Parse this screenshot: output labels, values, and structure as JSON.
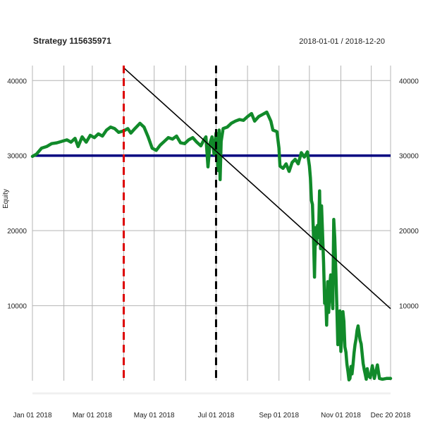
{
  "chart_data": {
    "type": "line",
    "title": "Strategy 115635971",
    "date_range": "2018-01-01 / 2018-12-20",
    "ylabel": "Equity",
    "xlim": [
      "2018-01-01",
      "2018-12-20"
    ],
    "ylim": [
      0,
      42000
    ],
    "x_ticks": [
      {
        "date": "2018-01-01",
        "label": "Jan 01 2018"
      },
      {
        "date": "2018-03-01",
        "label": "Mar 01 2018"
      },
      {
        "date": "2018-05-01",
        "label": "May 01 2018"
      },
      {
        "date": "2018-07-01",
        "label": "Jul 01 2018"
      },
      {
        "date": "2018-09-01",
        "label": "Sep 01 2018"
      },
      {
        "date": "2018-11-01",
        "label": "Nov 01 2018"
      },
      {
        "date": "2018-12-20",
        "label": "Dec 20 2018"
      }
    ],
    "x_gridlines": [
      "2018-01-01",
      "2018-02-01",
      "2018-03-01",
      "2018-04-01",
      "2018-05-01",
      "2018-06-01",
      "2018-07-01",
      "2018-08-01",
      "2018-09-01",
      "2018-10-01",
      "2018-11-01",
      "2018-12-01",
      "2018-12-20"
    ],
    "y_ticks": [
      10000,
      20000,
      30000,
      40000
    ],
    "y_tick_labels": [
      "10000",
      "20000",
      "30000",
      "40000"
    ],
    "grid": true,
    "baseline": {
      "value": 30000,
      "color": "#000080"
    },
    "trend_line": {
      "start": {
        "date": "2018-04-01",
        "value": 41700
      },
      "end": {
        "date": "2018-12-20",
        "value": 9600
      },
      "color": "#000000"
    },
    "vertical_markers": [
      {
        "date": "2018-04-01",
        "color": "#dd0000",
        "style": "dashed"
      },
      {
        "date": "2018-07-01",
        "color": "#000000",
        "style": "dashed"
      }
    ],
    "series": [
      {
        "color": "#118a2a",
        "points": [
          [
            "2018-01-01",
            29900
          ],
          [
            "2018-01-05",
            30200
          ],
          [
            "2018-01-10",
            31000
          ],
          [
            "2018-01-15",
            31200
          ],
          [
            "2018-01-20",
            31600
          ],
          [
            "2018-01-25",
            31700
          ],
          [
            "2018-01-30",
            31900
          ],
          [
            "2018-02-04",
            32100
          ],
          [
            "2018-02-08",
            31800
          ],
          [
            "2018-02-12",
            32300
          ],
          [
            "2018-02-15",
            31200
          ],
          [
            "2018-02-19",
            32500
          ],
          [
            "2018-02-23",
            31800
          ],
          [
            "2018-02-27",
            32700
          ],
          [
            "2018-03-03",
            32400
          ],
          [
            "2018-03-07",
            32900
          ],
          [
            "2018-03-11",
            32600
          ],
          [
            "2018-03-15",
            33400
          ],
          [
            "2018-03-19",
            33800
          ],
          [
            "2018-03-23",
            33600
          ],
          [
            "2018-03-27",
            33100
          ],
          [
            "2018-04-01",
            33300
          ],
          [
            "2018-04-05",
            33600
          ],
          [
            "2018-04-08",
            33000
          ],
          [
            "2018-04-12",
            33600
          ],
          [
            "2018-04-17",
            34300
          ],
          [
            "2018-04-21",
            33800
          ],
          [
            "2018-04-25",
            32500
          ],
          [
            "2018-04-29",
            31000
          ],
          [
            "2018-05-03",
            30700
          ],
          [
            "2018-05-07",
            31400
          ],
          [
            "2018-05-11",
            31900
          ],
          [
            "2018-05-15",
            32400
          ],
          [
            "2018-05-19",
            32200
          ],
          [
            "2018-05-23",
            32600
          ],
          [
            "2018-05-27",
            31700
          ],
          [
            "2018-05-31",
            31600
          ],
          [
            "2018-06-04",
            32100
          ],
          [
            "2018-06-08",
            32400
          ],
          [
            "2018-06-12",
            31800
          ],
          [
            "2018-06-16",
            31300
          ],
          [
            "2018-06-19",
            32100
          ],
          [
            "2018-06-21",
            32500
          ],
          [
            "2018-06-23",
            28500
          ],
          [
            "2018-06-25",
            31600
          ],
          [
            "2018-06-27",
            32500
          ],
          [
            "2018-06-29",
            30200
          ],
          [
            "2018-07-01",
            33000
          ],
          [
            "2018-07-03",
            28000
          ],
          [
            "2018-07-04",
            33400
          ],
          [
            "2018-07-05",
            26800
          ],
          [
            "2018-07-06",
            31900
          ],
          [
            "2018-07-08",
            33600
          ],
          [
            "2018-07-12",
            33800
          ],
          [
            "2018-07-16",
            34300
          ],
          [
            "2018-07-20",
            34600
          ],
          [
            "2018-07-24",
            34800
          ],
          [
            "2018-07-28",
            34700
          ],
          [
            "2018-08-01",
            35200
          ],
          [
            "2018-08-05",
            35600
          ],
          [
            "2018-08-08",
            34600
          ],
          [
            "2018-08-12",
            35200
          ],
          [
            "2018-08-16",
            35500
          ],
          [
            "2018-08-20",
            35800
          ],
          [
            "2018-08-24",
            34600
          ],
          [
            "2018-08-26",
            33400
          ],
          [
            "2018-08-30",
            33200
          ],
          [
            "2018-09-01",
            31000
          ],
          [
            "2018-09-02",
            28600
          ],
          [
            "2018-09-05",
            28300
          ],
          [
            "2018-09-08",
            28900
          ],
          [
            "2018-09-11",
            27900
          ],
          [
            "2018-09-14",
            29100
          ],
          [
            "2018-09-17",
            29500
          ],
          [
            "2018-09-20",
            28900
          ],
          [
            "2018-09-23",
            30400
          ],
          [
            "2018-09-26",
            29800
          ],
          [
            "2018-09-29",
            30500
          ],
          [
            "2018-10-01",
            28600
          ],
          [
            "2018-10-02",
            27000
          ],
          [
            "2018-10-03",
            24000
          ],
          [
            "2018-10-04",
            23500
          ],
          [
            "2018-10-05",
            19500
          ],
          [
            "2018-10-06",
            13800
          ],
          [
            "2018-10-07",
            20400
          ],
          [
            "2018-10-08",
            18200
          ],
          [
            "2018-10-09",
            20700
          ],
          [
            "2018-10-10",
            19100
          ],
          [
            "2018-10-11",
            25300
          ],
          [
            "2018-10-12",
            17600
          ],
          [
            "2018-10-13",
            23300
          ],
          [
            "2018-10-14",
            19400
          ],
          [
            "2018-10-15",
            15700
          ],
          [
            "2018-10-16",
            10300
          ],
          [
            "2018-10-17",
            11600
          ],
          [
            "2018-10-18",
            7400
          ],
          [
            "2018-10-19",
            13200
          ],
          [
            "2018-10-20",
            9100
          ],
          [
            "2018-10-21",
            12700
          ],
          [
            "2018-10-22",
            14100
          ],
          [
            "2018-10-23",
            11500
          ],
          [
            "2018-10-24",
            9600
          ],
          [
            "2018-10-25",
            21500
          ],
          [
            "2018-10-26",
            19100
          ],
          [
            "2018-10-27",
            14800
          ],
          [
            "2018-10-28",
            10200
          ],
          [
            "2018-10-29",
            4800
          ],
          [
            "2018-10-30",
            7100
          ],
          [
            "2018-10-31",
            9300
          ],
          [
            "2018-11-01",
            3900
          ],
          [
            "2018-11-02",
            6500
          ],
          [
            "2018-11-03",
            9200
          ],
          [
            "2018-11-04",
            7900
          ],
          [
            "2018-11-05",
            4500
          ],
          [
            "2018-11-06",
            3800
          ],
          [
            "2018-11-07",
            2200
          ],
          [
            "2018-11-08",
            1200
          ],
          [
            "2018-11-09",
            100
          ],
          [
            "2018-11-10",
            300
          ],
          [
            "2018-11-11",
            1900
          ],
          [
            "2018-11-12",
            900
          ],
          [
            "2018-11-13",
            2200
          ],
          [
            "2018-11-14",
            3700
          ],
          [
            "2018-11-15",
            4800
          ],
          [
            "2018-11-16",
            5600
          ],
          [
            "2018-11-17",
            6700
          ],
          [
            "2018-11-18",
            7300
          ],
          [
            "2018-11-19",
            6300
          ],
          [
            "2018-11-20",
            5400
          ],
          [
            "2018-11-21",
            4900
          ],
          [
            "2018-11-22",
            3600
          ],
          [
            "2018-11-23",
            2300
          ],
          [
            "2018-11-24",
            1500
          ],
          [
            "2018-11-25",
            900
          ],
          [
            "2018-11-26",
            200
          ],
          [
            "2018-11-27",
            1600
          ],
          [
            "2018-11-28",
            700
          ],
          [
            "2018-11-30",
            400
          ],
          [
            "2018-12-02",
            2000
          ],
          [
            "2018-12-04",
            300
          ],
          [
            "2018-12-07",
            2100
          ],
          [
            "2018-12-09",
            300
          ],
          [
            "2018-12-12",
            200
          ],
          [
            "2018-12-16",
            300
          ],
          [
            "2018-12-20",
            300
          ]
        ]
      }
    ]
  }
}
